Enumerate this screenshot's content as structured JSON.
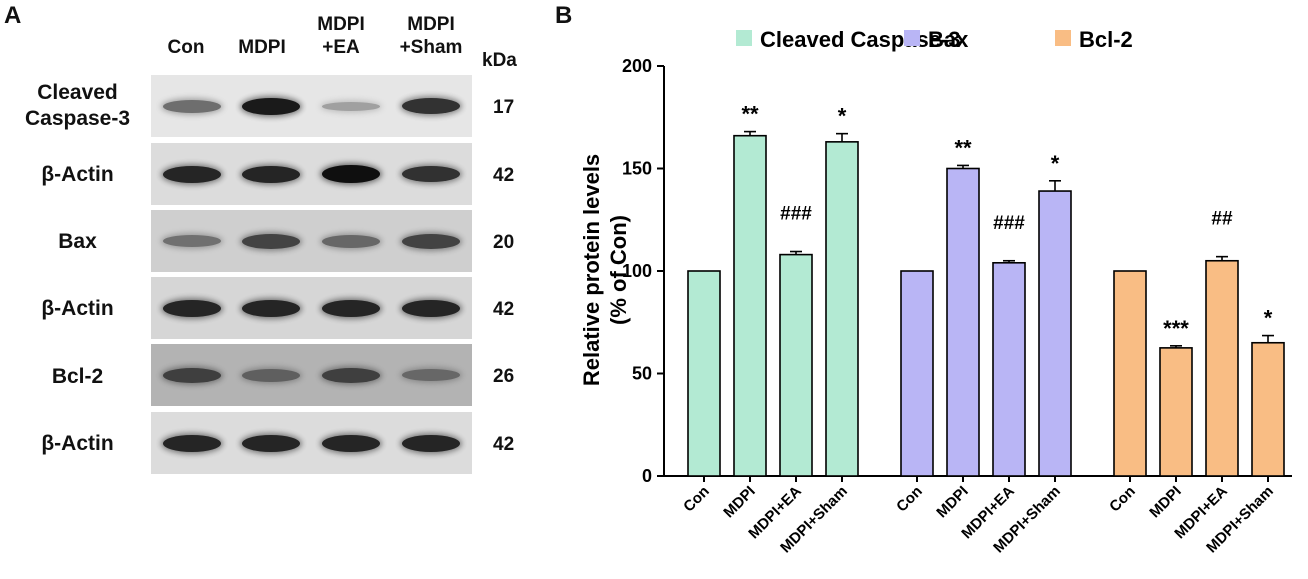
{
  "panel_a": {
    "letter": "A",
    "lanes": [
      {
        "line1": "Con",
        "line2": ""
      },
      {
        "line1": "MDPI",
        "line2": ""
      },
      {
        "line1": "MDPI",
        "line2": "+EA"
      },
      {
        "line1": "MDPI",
        "line2": "+Sham"
      }
    ],
    "kda_header": "kDa",
    "blots": [
      {
        "label_line1": "Cleaved",
        "label_line2": "Caspase-3",
        "mw": "17"
      },
      {
        "label_line1": "β-Actin",
        "label_line2": "",
        "mw": "42"
      },
      {
        "label_line1": "Bax",
        "label_line2": "",
        "mw": "20"
      },
      {
        "label_line1": "β-Actin",
        "label_line2": "",
        "mw": "42"
      },
      {
        "label_line1": "Bcl-2",
        "label_line2": "",
        "mw": "26"
      },
      {
        "label_line1": "β-Actin",
        "label_line2": "",
        "mw": "42"
      }
    ],
    "band_intensity": [
      [
        0.55,
        0.95,
        0.25,
        0.85
      ],
      [
        0.9,
        0.9,
        1.0,
        0.85
      ],
      [
        0.5,
        0.75,
        0.55,
        0.75
      ],
      [
        0.9,
        0.9,
        0.9,
        0.9
      ],
      [
        0.75,
        0.55,
        0.75,
        0.5
      ],
      [
        0.9,
        0.9,
        0.9,
        0.9
      ]
    ],
    "blot_backgrounds": [
      "#e6e6e6",
      "#dcdcdc",
      "#cfcfcf",
      "#d6d6d6",
      "#b3b3b3",
      "#dcdcdc"
    ]
  },
  "chart_data": {
    "panel_letter": "B",
    "type": "bar",
    "ylabel_line1": "Relative protein levels",
    "ylabel_line2": "(% of Con)",
    "ylim": [
      0,
      200
    ],
    "yticks": [
      "0",
      "50",
      "100",
      "150",
      "200"
    ],
    "ytick_values": [
      0,
      50,
      100,
      150,
      200
    ],
    "categories": [
      "Con",
      "MDPI",
      "MDPI+EA",
      "MDPI+Sham"
    ],
    "series": [
      {
        "name": "Cleaved Caspase-3",
        "color": "#b3ead3",
        "values": [
          100,
          166,
          108,
          163
        ],
        "errors": [
          0,
          2,
          1.5,
          4
        ],
        "annotations": [
          "",
          "**",
          "###",
          "*"
        ]
      },
      {
        "name": "Bax",
        "color": "#b9b5f5",
        "values": [
          100,
          150,
          104,
          139
        ],
        "errors": [
          0,
          1.5,
          1,
          5
        ],
        "annotations": [
          "",
          "**",
          "###",
          "*"
        ]
      },
      {
        "name": "Bcl-2",
        "color": "#f9bd84",
        "values": [
          100,
          62.5,
          105,
          65
        ],
        "errors": [
          0,
          1,
          2,
          3.5
        ],
        "annotations": [
          "",
          "***",
          "##",
          "*"
        ]
      }
    ],
    "legend_position": "top"
  }
}
